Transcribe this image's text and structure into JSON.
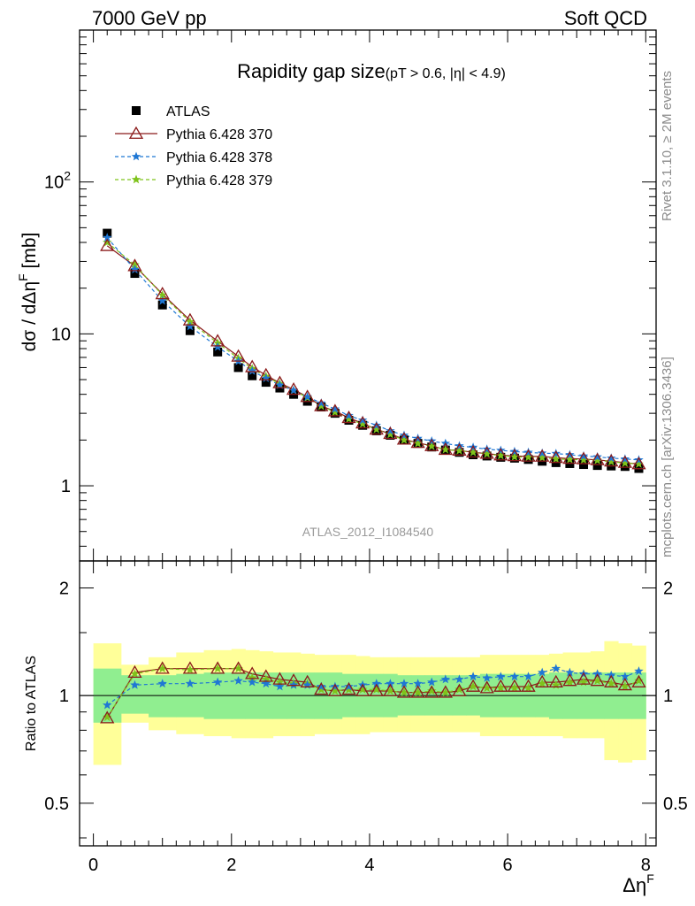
{
  "header": {
    "left": "7000 GeV pp",
    "right": "Soft QCD"
  },
  "side_text": {
    "top": "Rivet 3.1.10, ≥ 2M events",
    "bottom": "mcplots.cern.ch [arXiv:1306.3436]"
  },
  "chart_data": [
    {
      "type": "scatter",
      "title": "Rapidity gap size",
      "subtitle": "(pT > 0.6, |η| < 4.9)",
      "watermark": "ATLAS_2012_I1084540",
      "ylabel": "dσ / dΔη^F [mb]",
      "xlabel": "",
      "log_y": true,
      "xlim": [
        -0.2,
        8.15
      ],
      "ylim": [
        0.32,
        1000
      ],
      "y_tick_labels": [
        {
          "v": 1,
          "t": "1"
        },
        {
          "v": 10,
          "t": "10"
        },
        {
          "v": 100,
          "t": "10^2"
        }
      ],
      "legend_position": "top-left",
      "x": [
        0.2,
        0.6,
        1.0,
        1.4,
        1.8,
        2.1,
        2.3,
        2.5,
        2.7,
        2.9,
        3.1,
        3.3,
        3.5,
        3.7,
        3.9,
        4.1,
        4.3,
        4.5,
        4.7,
        4.9,
        5.1,
        5.3,
        5.5,
        5.7,
        5.9,
        6.1,
        6.3,
        6.5,
        6.7,
        6.9,
        7.1,
        7.3,
        7.5,
        7.7,
        7.9
      ],
      "series": [
        {
          "name": "ATLAS",
          "marker": "square",
          "color": "#000000",
          "values": [
            46,
            25,
            15.5,
            10.5,
            7.6,
            6.0,
            5.3,
            4.8,
            4.4,
            4.0,
            3.6,
            3.3,
            3.0,
            2.7,
            2.5,
            2.3,
            2.15,
            2.0,
            1.9,
            1.8,
            1.72,
            1.66,
            1.6,
            1.57,
            1.54,
            1.52,
            1.49,
            1.45,
            1.42,
            1.4,
            1.38,
            1.36,
            1.35,
            1.34,
            1.3
          ]
        },
        {
          "name": "Pythia 6.428 370",
          "marker": "triangle",
          "color": "#8b1a1a",
          "line": "solid",
          "values": [
            38,
            28,
            18.3,
            12.3,
            8.95,
            7.1,
            6.05,
            5.35,
            4.75,
            4.3,
            3.85,
            3.35,
            3.1,
            2.8,
            2.58,
            2.35,
            2.2,
            2.02,
            1.92,
            1.83,
            1.73,
            1.71,
            1.66,
            1.63,
            1.59,
            1.57,
            1.56,
            1.56,
            1.53,
            1.51,
            1.5,
            1.48,
            1.45,
            1.42,
            1.39
          ]
        },
        {
          "name": "Pythia 6.428 378",
          "marker": "star",
          "color": "#1f77d4",
          "line": "dashed",
          "values": [
            43,
            26.5,
            16.5,
            11.2,
            8.2,
            6.6,
            5.7,
            5.1,
            4.6,
            4.25,
            3.85,
            3.5,
            3.2,
            2.9,
            2.7,
            2.5,
            2.3,
            2.15,
            2.05,
            1.97,
            1.9,
            1.83,
            1.79,
            1.74,
            1.71,
            1.68,
            1.66,
            1.64,
            1.63,
            1.6,
            1.57,
            1.55,
            1.52,
            1.5,
            1.48
          ]
        },
        {
          "name": "Pythia 6.428 379",
          "marker": "star",
          "color": "#7fc31c",
          "line": "dashed",
          "values": [
            40,
            28.5,
            18.0,
            12.0,
            8.7,
            6.9,
            5.9,
            5.25,
            4.7,
            4.25,
            3.8,
            3.35,
            3.05,
            2.75,
            2.55,
            2.35,
            2.18,
            2.0,
            1.9,
            1.82,
            1.73,
            1.7,
            1.66,
            1.62,
            1.58,
            1.55,
            1.54,
            1.53,
            1.5,
            1.49,
            1.48,
            1.47,
            1.44,
            1.41,
            1.39
          ]
        }
      ]
    },
    {
      "type": "scatter",
      "ylabel": "Ratio to ATLAS",
      "xlabel": "Δη^F",
      "xlim": [
        -0.2,
        8.15
      ],
      "ylim": [
        0.38,
        2.38
      ],
      "log_y": true,
      "y_tick_labels": [
        {
          "v": 0.5,
          "t": "0.5"
        },
        {
          "v": 1,
          "t": "1"
        },
        {
          "v": 2,
          "t": "2"
        }
      ],
      "x_tick_labels": [
        "0",
        "2",
        "4",
        "6",
        "8"
      ],
      "bin_edges": [
        0.0,
        0.4,
        0.8,
        1.2,
        1.6,
        2.0,
        2.2,
        2.4,
        2.6,
        2.8,
        3.0,
        3.2,
        3.4,
        3.6,
        3.8,
        4.0,
        4.2,
        4.4,
        4.6,
        4.8,
        5.0,
        5.2,
        5.4,
        5.6,
        5.8,
        6.0,
        6.2,
        6.4,
        6.6,
        6.8,
        7.0,
        7.2,
        7.4,
        7.6,
        7.8,
        8.0
      ],
      "stat_band_green": {
        "color": "#90ee90",
        "lo": [
          0.84,
          0.89,
          0.87,
          0.87,
          0.86,
          0.86,
          0.86,
          0.86,
          0.86,
          0.86,
          0.86,
          0.86,
          0.86,
          0.87,
          0.87,
          0.87,
          0.87,
          0.88,
          0.88,
          0.88,
          0.88,
          0.88,
          0.88,
          0.87,
          0.87,
          0.87,
          0.87,
          0.87,
          0.86,
          0.86,
          0.86,
          0.86,
          0.86,
          0.86,
          0.86
        ],
        "hi": [
          1.19,
          1.14,
          1.14,
          1.15,
          1.16,
          1.16,
          1.16,
          1.16,
          1.16,
          1.16,
          1.16,
          1.16,
          1.16,
          1.15,
          1.15,
          1.15,
          1.15,
          1.14,
          1.14,
          1.14,
          1.14,
          1.14,
          1.14,
          1.15,
          1.15,
          1.15,
          1.15,
          1.15,
          1.16,
          1.16,
          1.16,
          1.16,
          1.16,
          1.16,
          1.16
        ]
      },
      "total_band_yellow": {
        "color": "#ffff99",
        "lo": [
          0.64,
          0.84,
          0.8,
          0.78,
          0.77,
          0.76,
          0.76,
          0.76,
          0.77,
          0.77,
          0.77,
          0.78,
          0.78,
          0.78,
          0.78,
          0.79,
          0.79,
          0.79,
          0.79,
          0.79,
          0.79,
          0.79,
          0.79,
          0.77,
          0.77,
          0.77,
          0.77,
          0.77,
          0.77,
          0.76,
          0.76,
          0.76,
          0.66,
          0.65,
          0.66
        ],
        "hi": [
          1.4,
          1.22,
          1.28,
          1.32,
          1.34,
          1.35,
          1.34,
          1.33,
          1.32,
          1.32,
          1.31,
          1.3,
          1.3,
          1.3,
          1.29,
          1.28,
          1.28,
          1.28,
          1.28,
          1.28,
          1.28,
          1.28,
          1.28,
          1.3,
          1.3,
          1.3,
          1.3,
          1.3,
          1.31,
          1.32,
          1.32,
          1.33,
          1.42,
          1.4,
          1.38
        ]
      },
      "x": [
        0.2,
        0.6,
        1.0,
        1.4,
        1.8,
        2.1,
        2.3,
        2.5,
        2.7,
        2.9,
        3.1,
        3.3,
        3.5,
        3.7,
        3.9,
        4.1,
        4.3,
        4.5,
        4.7,
        4.9,
        5.1,
        5.3,
        5.5,
        5.7,
        5.9,
        6.1,
        6.3,
        6.5,
        6.7,
        6.9,
        7.1,
        7.3,
        7.5,
        7.7,
        7.9
      ],
      "series": [
        {
          "name": "Pythia 6.428 370",
          "marker": "triangle",
          "color": "#8b1a1a",
          "line": "solid",
          "values": [
            0.865,
            1.16,
            1.19,
            1.19,
            1.19,
            1.19,
            1.15,
            1.13,
            1.11,
            1.1,
            1.09,
            1.04,
            1.03,
            1.04,
            1.03,
            1.03,
            1.03,
            1.02,
            1.02,
            1.02,
            1.02,
            1.03,
            1.06,
            1.05,
            1.06,
            1.06,
            1.06,
            1.09,
            1.09,
            1.1,
            1.11,
            1.1,
            1.09,
            1.07,
            1.09
          ]
        },
        {
          "name": "Pythia 6.428 378",
          "marker": "star",
          "color": "#1f77d4",
          "line": "dashed",
          "values": [
            0.94,
            1.07,
            1.08,
            1.08,
            1.09,
            1.1,
            1.09,
            1.08,
            1.06,
            1.07,
            1.07,
            1.06,
            1.06,
            1.06,
            1.07,
            1.08,
            1.08,
            1.08,
            1.08,
            1.09,
            1.11,
            1.11,
            1.13,
            1.12,
            1.13,
            1.13,
            1.13,
            1.16,
            1.19,
            1.16,
            1.15,
            1.15,
            1.14,
            1.13,
            1.17
          ]
        },
        {
          "name": "Pythia 6.428 379",
          "marker": "star",
          "color": "#7fc31c",
          "line": "dashed",
          "values": [
            0.87,
            1.15,
            1.19,
            1.18,
            1.19,
            1.19,
            1.12,
            1.11,
            1.09,
            1.08,
            1.08,
            1.04,
            1.03,
            1.04,
            1.04,
            1.04,
            1.03,
            1.02,
            1.02,
            1.03,
            1.02,
            1.04,
            1.06,
            1.05,
            1.05,
            1.05,
            1.05,
            1.08,
            1.07,
            1.09,
            1.09,
            1.1,
            1.08,
            1.06,
            1.1
          ]
        }
      ]
    }
  ]
}
